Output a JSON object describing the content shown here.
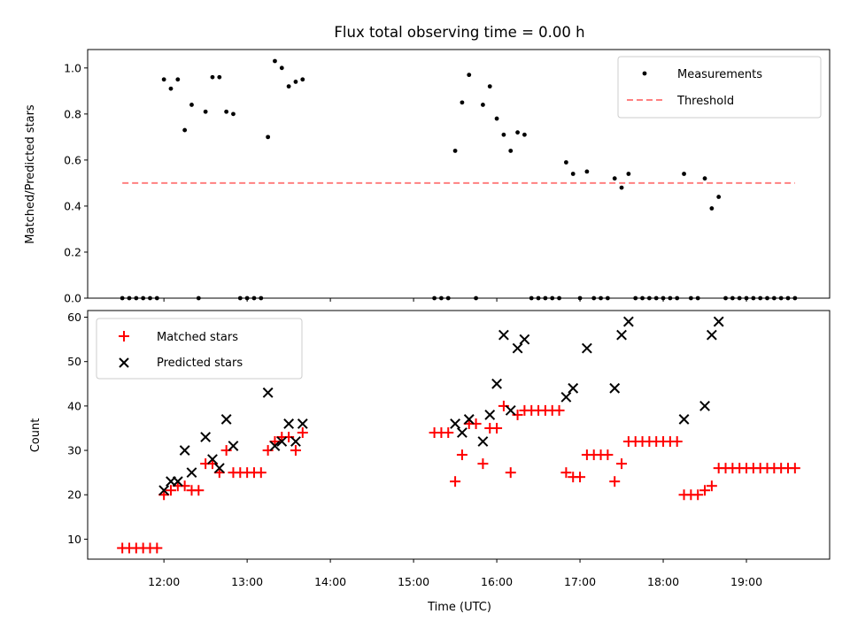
{
  "chart_data": [
    {
      "type": "scatter",
      "title": "Flux total observing time = 0.00 h",
      "xlabel": "",
      "ylabel": "Matched/Predicted stars",
      "xlim": [
        "11:05",
        "20:00"
      ],
      "ylim": [
        0,
        1.08
      ],
      "yticks": [
        "0.0",
        "0.2",
        "0.4",
        "0.6",
        "0.8",
        "1.0"
      ],
      "legend": {
        "placement": "top-right",
        "entries": [
          "Measurements",
          "Threshold"
        ]
      },
      "colors": {
        "measurements": "#000000",
        "threshold": "#ff8080"
      },
      "series": [
        {
          "name": "Measurements",
          "marker": "dot",
          "points": [
            [
              "11:30",
              0.0
            ],
            [
              "11:35",
              0.0
            ],
            [
              "11:40",
              0.0
            ],
            [
              "11:45",
              0.0
            ],
            [
              "11:50",
              0.0
            ],
            [
              "11:55",
              0.0
            ],
            [
              "12:00",
              0.95
            ],
            [
              "12:05",
              0.91
            ],
            [
              "12:10",
              0.95
            ],
            [
              "12:15",
              0.73
            ],
            [
              "12:20",
              0.84
            ],
            [
              "12:25",
              0.0
            ],
            [
              "12:30",
              0.81
            ],
            [
              "12:35",
              0.96
            ],
            [
              "12:40",
              0.96
            ],
            [
              "12:45",
              0.81
            ],
            [
              "12:50",
              0.8
            ],
            [
              "12:55",
              0.0
            ],
            [
              "13:00",
              0.0
            ],
            [
              "13:05",
              0.0
            ],
            [
              "13:10",
              0.0
            ],
            [
              "13:15",
              0.7
            ],
            [
              "13:20",
              1.03
            ],
            [
              "13:25",
              1.0
            ],
            [
              "13:30",
              0.92
            ],
            [
              "13:35",
              0.94
            ],
            [
              "13:40",
              0.95
            ],
            [
              "15:15",
              0.0
            ],
            [
              "15:20",
              0.0
            ],
            [
              "15:25",
              0.0
            ],
            [
              "15:30",
              0.64
            ],
            [
              "15:35",
              0.85
            ],
            [
              "15:40",
              0.97
            ],
            [
              "15:45",
              0.0
            ],
            [
              "15:50",
              0.84
            ],
            [
              "15:55",
              0.92
            ],
            [
              "16:00",
              0.78
            ],
            [
              "16:05",
              0.71
            ],
            [
              "16:10",
              0.64
            ],
            [
              "16:15",
              0.72
            ],
            [
              "16:20",
              0.71
            ],
            [
              "16:25",
              0.0
            ],
            [
              "16:30",
              0.0
            ],
            [
              "16:35",
              0.0
            ],
            [
              "16:40",
              0.0
            ],
            [
              "16:45",
              0.0
            ],
            [
              "16:50",
              0.59
            ],
            [
              "16:55",
              0.54
            ],
            [
              "17:00",
              0.0
            ],
            [
              "17:05",
              0.55
            ],
            [
              "17:10",
              0.0
            ],
            [
              "17:15",
              0.0
            ],
            [
              "17:20",
              0.0
            ],
            [
              "17:25",
              0.52
            ],
            [
              "17:30",
              0.48
            ],
            [
              "17:35",
              0.54
            ],
            [
              "17:40",
              0.0
            ],
            [
              "17:45",
              0.0
            ],
            [
              "17:50",
              0.0
            ],
            [
              "17:55",
              0.0
            ],
            [
              "18:00",
              0.0
            ],
            [
              "18:05",
              0.0
            ],
            [
              "18:10",
              0.0
            ],
            [
              "18:15",
              0.54
            ],
            [
              "18:20",
              0.0
            ],
            [
              "18:25",
              0.0
            ],
            [
              "18:30",
              0.52
            ],
            [
              "18:35",
              0.39
            ],
            [
              "18:40",
              0.44
            ],
            [
              "18:45",
              0.0
            ],
            [
              "18:50",
              0.0
            ],
            [
              "18:55",
              0.0
            ],
            [
              "19:00",
              0.0
            ],
            [
              "19:05",
              0.0
            ],
            [
              "19:10",
              0.0
            ],
            [
              "19:15",
              0.0
            ],
            [
              "19:20",
              0.0
            ],
            [
              "19:25",
              0.0
            ],
            [
              "19:30",
              0.0
            ],
            [
              "19:35",
              0.0
            ]
          ]
        },
        {
          "name": "Threshold",
          "marker": "dashed-line",
          "x": [
            "11:30",
            "19:35"
          ],
          "y": [
            0.5,
            0.5
          ]
        }
      ]
    },
    {
      "type": "scatter",
      "title": "",
      "xlabel": "Time (UTC)",
      "ylabel": "Count",
      "xlim": [
        "11:05",
        "20:00"
      ],
      "ylim": [
        5.5,
        61.5
      ],
      "xticks": [
        "12:00",
        "13:00",
        "14:00",
        "15:00",
        "16:00",
        "17:00",
        "18:00",
        "19:00"
      ],
      "yticks": [
        "10",
        "20",
        "30",
        "40",
        "50",
        "60"
      ],
      "legend": {
        "placement": "top-left",
        "entries": [
          "Matched stars",
          "Predicted stars"
        ]
      },
      "colors": {
        "matched": "#ff0000",
        "predicted": "#000000"
      },
      "series": [
        {
          "name": "Matched stars",
          "marker": "plus",
          "points": [
            [
              "11:30",
              8
            ],
            [
              "11:35",
              8
            ],
            [
              "11:40",
              8
            ],
            [
              "11:45",
              8
            ],
            [
              "11:50",
              8
            ],
            [
              "11:55",
              8
            ],
            [
              "12:00",
              20
            ],
            [
              "12:05",
              21
            ],
            [
              "12:10",
              22
            ],
            [
              "12:15",
              22
            ],
            [
              "12:20",
              21
            ],
            [
              "12:25",
              21
            ],
            [
              "12:30",
              27
            ],
            [
              "12:35",
              27
            ],
            [
              "12:40",
              25
            ],
            [
              "12:45",
              30
            ],
            [
              "12:50",
              25
            ],
            [
              "12:55",
              25
            ],
            [
              "13:00",
              25
            ],
            [
              "13:05",
              25
            ],
            [
              "13:10",
              25
            ],
            [
              "13:15",
              30
            ],
            [
              "13:20",
              32
            ],
            [
              "13:25",
              33
            ],
            [
              "13:30",
              33
            ],
            [
              "13:35",
              30
            ],
            [
              "13:40",
              34
            ],
            [
              "15:15",
              34
            ],
            [
              "15:20",
              34
            ],
            [
              "15:25",
              34
            ],
            [
              "15:30",
              23
            ],
            [
              "15:35",
              29
            ],
            [
              "15:40",
              36
            ],
            [
              "15:45",
              36
            ],
            [
              "15:50",
              27
            ],
            [
              "15:55",
              35
            ],
            [
              "16:00",
              35
            ],
            [
              "16:05",
              40
            ],
            [
              "16:10",
              25
            ],
            [
              "16:15",
              38
            ],
            [
              "16:20",
              39
            ],
            [
              "16:25",
              39
            ],
            [
              "16:30",
              39
            ],
            [
              "16:35",
              39
            ],
            [
              "16:40",
              39
            ],
            [
              "16:45",
              39
            ],
            [
              "16:50",
              25
            ],
            [
              "16:55",
              24
            ],
            [
              "17:00",
              24
            ],
            [
              "17:05",
              29
            ],
            [
              "17:10",
              29
            ],
            [
              "17:15",
              29
            ],
            [
              "17:20",
              29
            ],
            [
              "17:25",
              23
            ],
            [
              "17:30",
              27
            ],
            [
              "17:35",
              32
            ],
            [
              "17:40",
              32
            ],
            [
              "17:45",
              32
            ],
            [
              "17:50",
              32
            ],
            [
              "17:55",
              32
            ],
            [
              "18:00",
              32
            ],
            [
              "18:05",
              32
            ],
            [
              "18:10",
              32
            ],
            [
              "18:15",
              20
            ],
            [
              "18:20",
              20
            ],
            [
              "18:25",
              20
            ],
            [
              "18:30",
              21
            ],
            [
              "18:35",
              22
            ],
            [
              "18:40",
              26
            ],
            [
              "18:45",
              26
            ],
            [
              "18:50",
              26
            ],
            [
              "18:55",
              26
            ],
            [
              "19:00",
              26
            ],
            [
              "19:05",
              26
            ],
            [
              "19:10",
              26
            ],
            [
              "19:15",
              26
            ],
            [
              "19:20",
              26
            ],
            [
              "19:25",
              26
            ],
            [
              "19:30",
              26
            ],
            [
              "19:35",
              26
            ]
          ]
        },
        {
          "name": "Predicted stars",
          "marker": "x",
          "points": [
            [
              "12:00",
              21
            ],
            [
              "12:05",
              23
            ],
            [
              "12:10",
              23
            ],
            [
              "12:15",
              30
            ],
            [
              "12:20",
              25
            ],
            [
              "12:30",
              33
            ],
            [
              "12:35",
              28
            ],
            [
              "12:40",
              26
            ],
            [
              "12:45",
              37
            ],
            [
              "12:50",
              31
            ],
            [
              "13:15",
              43
            ],
            [
              "13:20",
              31
            ],
            [
              "13:25",
              32
            ],
            [
              "13:30",
              36
            ],
            [
              "13:35",
              32
            ],
            [
              "13:40",
              36
            ],
            [
              "15:30",
              36
            ],
            [
              "15:35",
              34
            ],
            [
              "15:40",
              37
            ],
            [
              "15:50",
              32
            ],
            [
              "15:55",
              38
            ],
            [
              "16:00",
              45
            ],
            [
              "16:05",
              56
            ],
            [
              "16:10",
              39
            ],
            [
              "16:15",
              53
            ],
            [
              "16:20",
              55
            ],
            [
              "16:50",
              42
            ],
            [
              "16:55",
              44
            ],
            [
              "17:05",
              53
            ],
            [
              "17:25",
              44
            ],
            [
              "17:30",
              56
            ],
            [
              "17:35",
              59
            ],
            [
              "18:15",
              37
            ],
            [
              "18:30",
              40
            ],
            [
              "18:35",
              56
            ],
            [
              "18:40",
              59
            ]
          ]
        }
      ]
    }
  ]
}
